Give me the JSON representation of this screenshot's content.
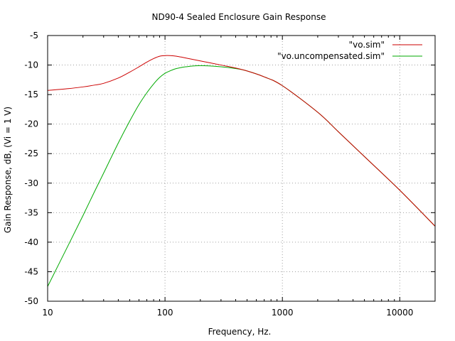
{
  "chart_data": {
    "type": "line",
    "title": "ND90-4 Sealed Enclosure Gain Response",
    "xlabel": "Frequency, Hz.",
    "ylabel": "Gain Response, dB, (Vi = 1 V)",
    "xscale": "log",
    "xlim": [
      10,
      20000
    ],
    "ylim": [
      -50,
      -5
    ],
    "x_ticks": [
      10,
      100,
      1000,
      10000
    ],
    "x_tick_labels": [
      "10",
      "100",
      "1000",
      "10000"
    ],
    "y_ticks": [
      -5,
      -10,
      -15,
      -20,
      -25,
      -30,
      -35,
      -40,
      -45,
      -50
    ],
    "y_tick_labels": [
      "-5",
      "-10",
      "-15",
      "-20",
      "-25",
      "-30",
      "-35",
      "-40",
      "-45",
      "-50"
    ],
    "grid": true,
    "legend_position": "top-right",
    "series": [
      {
        "name": "\"vo.sim\"",
        "color": "#cc0000",
        "x": [
          10,
          15,
          20,
          25,
          30,
          40,
          50,
          60,
          70,
          80,
          90,
          100,
          110,
          125,
          150,
          200,
          300,
          400,
          500,
          700,
          1000,
          2000,
          3000,
          5000,
          10000,
          20000
        ],
        "y": [
          -14.3,
          -14.0,
          -13.7,
          -13.4,
          -13.1,
          -12.2,
          -11.2,
          -10.3,
          -9.5,
          -8.9,
          -8.5,
          -8.4,
          -8.4,
          -8.5,
          -8.8,
          -9.3,
          -10.0,
          -10.5,
          -11.0,
          -12.0,
          -13.5,
          -18.0,
          -21.3,
          -25.5,
          -31.2,
          -37.3
        ]
      },
      {
        "name": "\"vo.uncompensated.sim\"",
        "color": "#00aa00",
        "x": [
          10,
          15,
          20,
          25,
          30,
          40,
          50,
          60,
          70,
          80,
          90,
          100,
          110,
          125,
          150,
          200,
          300,
          400,
          500,
          700,
          1000,
          2000,
          3000,
          5000,
          10000,
          20000
        ],
        "y": [
          -47.5,
          -40.5,
          -35.5,
          -31.5,
          -28.3,
          -23.2,
          -19.5,
          -16.7,
          -14.7,
          -13.2,
          -12.1,
          -11.4,
          -11.0,
          -10.6,
          -10.3,
          -10.1,
          -10.3,
          -10.6,
          -11.0,
          -12.0,
          -13.5,
          -18.0,
          -21.3,
          -25.5,
          -31.2,
          -37.3
        ]
      }
    ]
  }
}
